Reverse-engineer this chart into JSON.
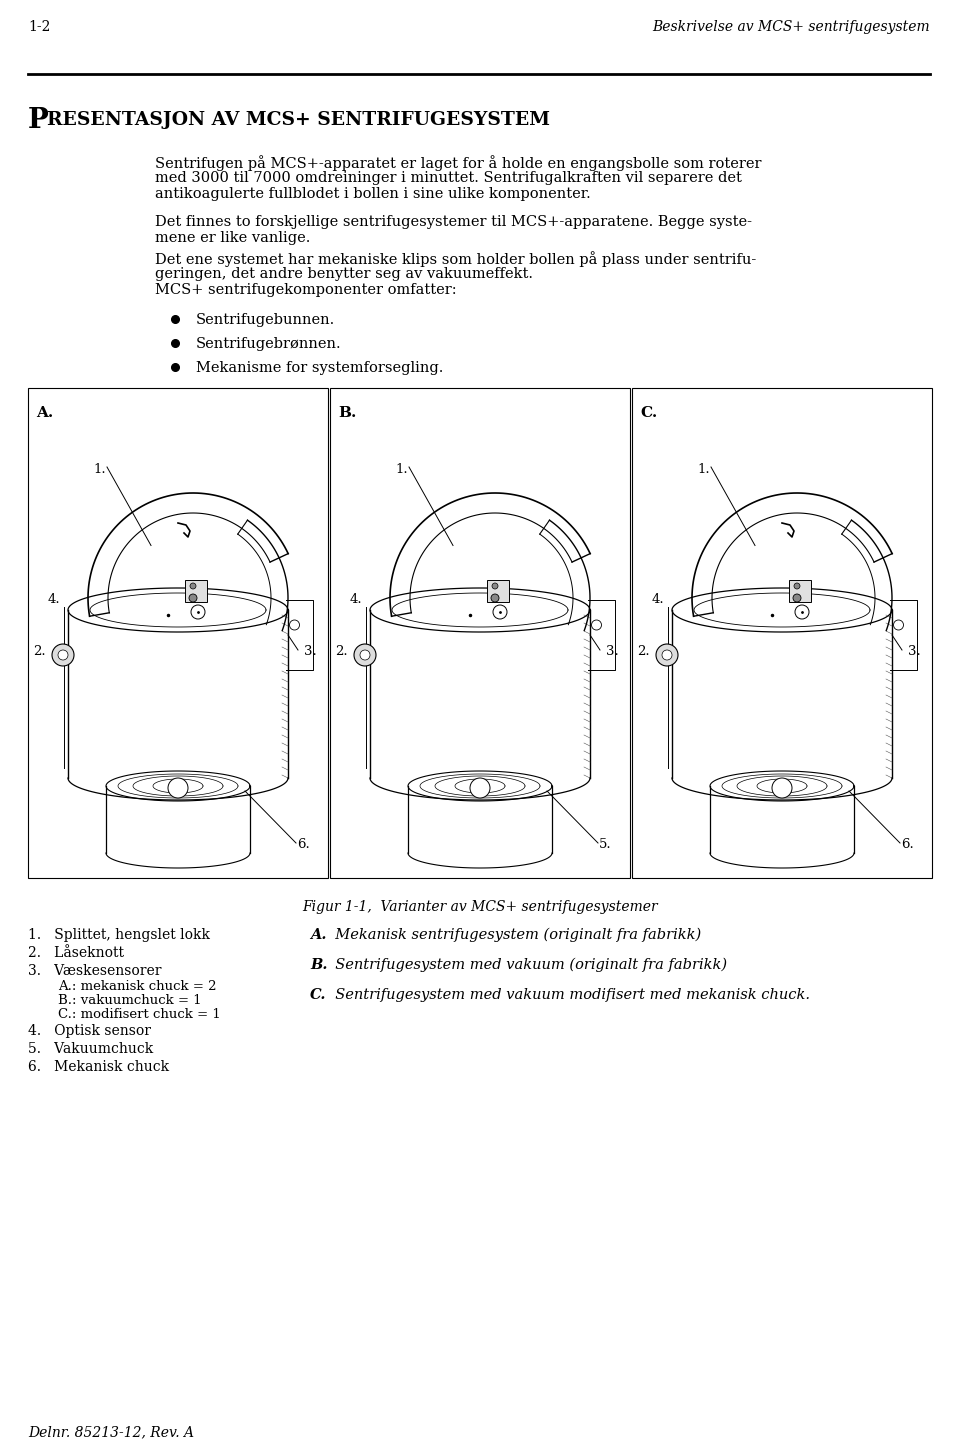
{
  "page_number": "1-2",
  "header_right": "Beskrivelse av MCS+ sentrifugesystem",
  "body_para1_lines": [
    "Sentrifugen på MCS+-apparatet er laget for å holde en engangsbolle som roterer",
    "med 3000 til 7000 omdreininger i minuttet. Sentrifugalkraften vil separere det",
    "antikoagulerte fullblodet i bollen i sine ulike komponenter."
  ],
  "body_para2_lines": [
    "Det finnes to forskjellige sentrifugesystemer til MCS+-apparatene. Begge syste-",
    "mene er like vanlige."
  ],
  "body_para3_lines": [
    "Det ene systemet har mekaniske klips som holder bollen på plass under sentrifu-",
    "geringen, det andre benytter seg av vakuumeffekt.",
    "MCS+ sentrifugekomponenter omfatter:"
  ],
  "bullet_points": [
    "Sentrifugebunnen.",
    "Sentrifugebrønnen.",
    "Mekanisme for systemforsegling."
  ],
  "figure_caption": "Figur 1-1,  Varianter av MCS+ sentrifugesystemer",
  "legend_items": [
    "Splittet, hengslet lokk",
    "Låseknott",
    "Væskesensorer",
    "Optisk sensor",
    "Vakuumchuck",
    "Mekanisk chuck"
  ],
  "legend_sub": [
    "A.: mekanisk chuck = 2",
    "B.: vakuumchuck = 1",
    "C.: modifisert chuck = 1"
  ],
  "diagram_captions": [
    [
      "A.",
      "  Mekanisk sentrifugesystem (originalt fra fabrikk)"
    ],
    [
      "B.",
      "  Sentrifugesystem med vakuum (originalt fra fabrikk)"
    ],
    [
      "C.",
      "  Sentrifugesystem med vakuum modifisert med mekanisk chuck."
    ]
  ],
  "footer": "Delnr. 85213-12, Rev. A",
  "section_title_large": "P",
  "section_title_small": "RESENTASJON AV MCS+ SENTRIFUGESYSTEM",
  "background_color": "#ffffff",
  "text_color": "#000000"
}
